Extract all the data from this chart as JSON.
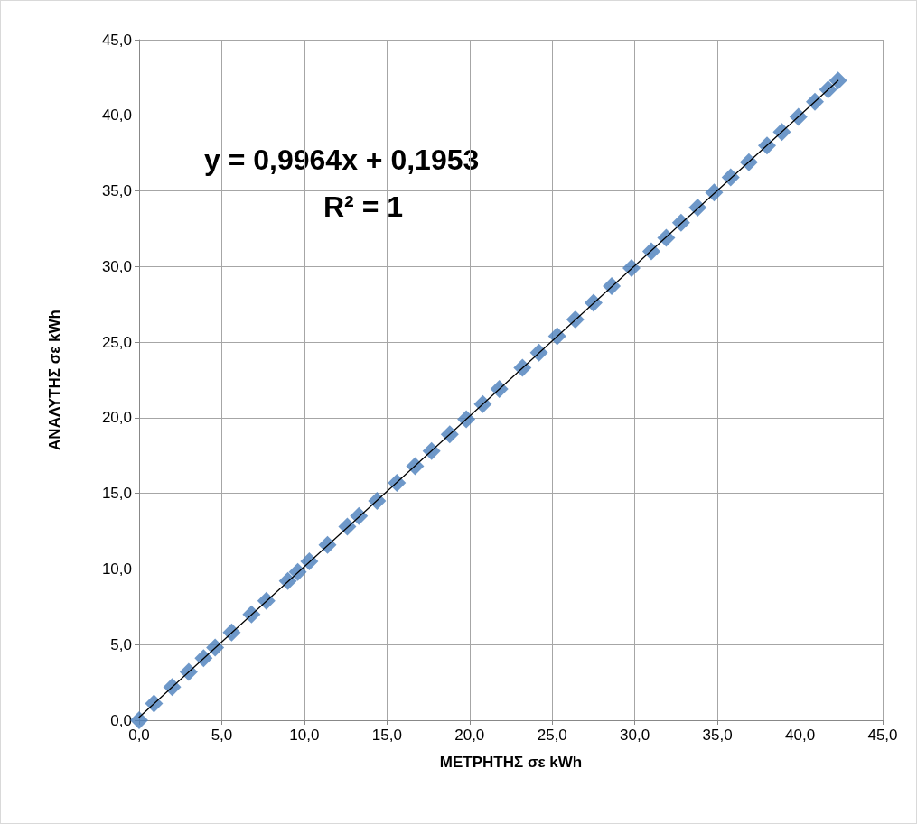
{
  "chart_data": {
    "type": "scatter",
    "xlabel": "ΜΕΤΡΗΤΗΣ σε kWh",
    "ylabel": "ΑΝΑΛΥΤΗΣ σε kWh",
    "annotations": [
      "y = 0,9964x + 0,1953",
      "R² = 1"
    ],
    "xlim": [
      0,
      45
    ],
    "ylim": [
      0,
      45
    ],
    "xticks": [
      {
        "value": 0,
        "label": "0,0"
      },
      {
        "value": 5,
        "label": "5,0"
      },
      {
        "value": 10,
        "label": "10,0"
      },
      {
        "value": 15,
        "label": "15,0"
      },
      {
        "value": 20,
        "label": "20,0"
      },
      {
        "value": 25,
        "label": "25,0"
      },
      {
        "value": 30,
        "label": "30,0"
      },
      {
        "value": 35,
        "label": "35,0"
      },
      {
        "value": 40,
        "label": "40,0"
      },
      {
        "value": 45,
        "label": "45,0"
      }
    ],
    "yticks": [
      {
        "value": 0,
        "label": "0,0"
      },
      {
        "value": 5,
        "label": "5,0"
      },
      {
        "value": 10,
        "label": "10,0"
      },
      {
        "value": 15,
        "label": "15,0"
      },
      {
        "value": 20,
        "label": "20,0"
      },
      {
        "value": 25,
        "label": "25,0"
      },
      {
        "value": 30,
        "label": "30,0"
      },
      {
        "value": 35,
        "label": "35,0"
      },
      {
        "value": 40,
        "label": "40,0"
      },
      {
        "value": 45,
        "label": "45,0"
      }
    ],
    "grid": true,
    "marker": "diamond",
    "series": [
      {
        "color": "#4a7ebb",
        "x": [
          0,
          0.9,
          2.0,
          3.0,
          3.9,
          4.6,
          5.6,
          6.8,
          7.7,
          9.0,
          9.6,
          10.3,
          11.4,
          12.6,
          13.3,
          14.4,
          15.6,
          16.7,
          17.7,
          18.8,
          19.8,
          20.8,
          21.8,
          23.2,
          24.2,
          25.3,
          26.4,
          27.5,
          28.6,
          29.8,
          31.0,
          31.9,
          32.8,
          33.8,
          34.8,
          35.8,
          36.9,
          38.0,
          38.9,
          39.9,
          40.9,
          41.7,
          42.3
        ],
        "values": [
          0.0,
          1.1,
          2.2,
          3.2,
          4.1,
          4.8,
          5.8,
          7.0,
          7.9,
          9.2,
          9.8,
          10.5,
          11.6,
          12.8,
          13.5,
          14.5,
          15.7,
          16.8,
          17.8,
          18.9,
          19.9,
          20.9,
          21.9,
          23.3,
          24.3,
          25.4,
          26.5,
          27.6,
          28.7,
          29.9,
          31.0,
          31.9,
          32.9,
          33.9,
          34.9,
          35.9,
          36.9,
          38.0,
          38.9,
          39.9,
          40.9,
          41.7,
          42.3
        ]
      },
      {
        "type": "line",
        "color": "#000000",
        "marker": "none",
        "line_style": "solid",
        "x": [
          0,
          42.3
        ],
        "values": [
          0.2,
          42.3
        ]
      }
    ]
  }
}
